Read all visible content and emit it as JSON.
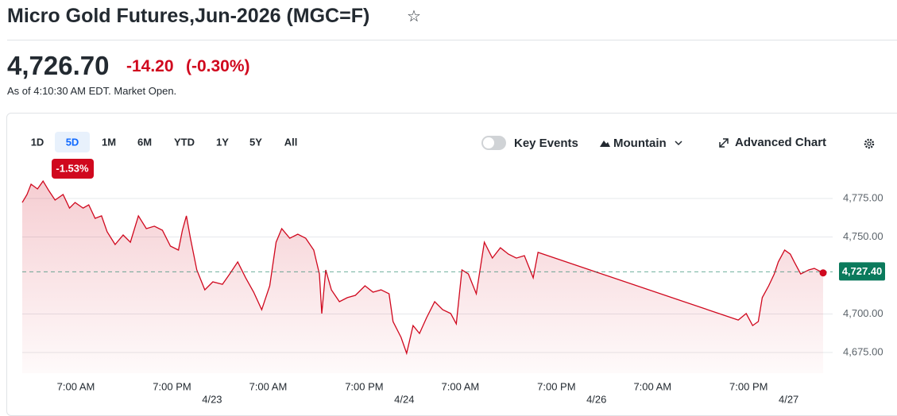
{
  "header": {
    "title": "Micro Gold Futures,Jun-2026 (MGC=F)"
  },
  "quote": {
    "price": "4,726.70",
    "change": "-14.20",
    "change_percent": "(-0.30%)",
    "as_of": "As of 4:10:30 AM EDT. Market Open."
  },
  "toolbar": {
    "ranges": [
      "1D",
      "5D",
      "1M",
      "6M",
      "YTD",
      "1Y",
      "5Y",
      "All"
    ],
    "selected_range": 1,
    "range_change": "-1.53%",
    "key_events": "Key Events",
    "chart_style": "Mountain",
    "advanced": "Advanced Chart"
  },
  "chart_data": {
    "type": "area",
    "color": "#d0081e",
    "grid": true,
    "x": [
      0.3,
      0.9,
      1.4,
      2.2,
      2.9,
      3.6,
      4.4,
      5.4,
      6.2,
      6.9,
      7.9,
      8.6,
      9.4,
      10.2,
      10.9,
      11.9,
      12.9,
      13.8,
      14.8,
      15.8,
      16.8,
      17.8,
      18.8,
      19.8,
      20.3,
      20.8,
      21.3,
      22.1,
      23.1,
      24.1,
      25.3,
      26.2,
      27.2,
      28.2,
      29.2,
      30.2,
      31.2,
      32.0,
      32.7,
      33.7,
      34.7,
      35.7,
      36.7,
      37.4,
      37.7,
      38.2,
      38.9,
      39.9,
      40.9,
      41.9,
      43.1,
      44.1,
      45.1,
      46.1,
      46.6,
      47.6,
      48.3,
      49.1,
      49.9,
      50.8,
      51.8,
      52.8,
      53.8,
      54.5,
      55.2,
      56.0,
      57.0,
      58.0,
      59.0,
      60.0,
      61.0,
      62.0,
      63.0,
      64.1,
      64.7,
      89.7,
      90.7,
      91.5,
      92.2,
      92.7,
      93.5,
      94.2,
      94.7,
      95.5,
      96.2,
      96.7,
      97.5,
      98.5,
      99.2,
      100.3
    ],
    "values": [
      4772.4,
      4777.6,
      4784.3,
      4781.2,
      4786.3,
      4780.2,
      4774.0,
      4777.6,
      4768.8,
      4772.4,
      4768.8,
      4770.9,
      4762.1,
      4763.7,
      4753.4,
      4745.1,
      4751.3,
      4746.6,
      4763.7,
      4755.4,
      4757.0,
      4754.4,
      4744.1,
      4741.5,
      4754.4,
      4763.7,
      4749.2,
      4728.6,
      4715.7,
      4720.9,
      4719.3,
      4726.0,
      4733.8,
      4723.5,
      4714.2,
      4702.8,
      4718.3,
      4746.6,
      4755.4,
      4749.2,
      4751.8,
      4749.2,
      4741.5,
      4726.0,
      4700.3,
      4728.6,
      4715.7,
      4708.0,
      4710.6,
      4712.1,
      4718.3,
      4714.2,
      4715.7,
      4713.1,
      4695.1,
      4684.8,
      4674.5,
      4692.5,
      4687.4,
      4697.7,
      4708.0,
      4702.8,
      4700.3,
      4693.6,
      4728.6,
      4726.0,
      4713.1,
      4746.6,
      4736.3,
      4743.0,
      4738.9,
      4736.3,
      4737.9,
      4723.5,
      4740.0,
      4696.1,
      4700.3,
      4692.5,
      4695.1,
      4710.6,
      4718.3,
      4726.0,
      4733.8,
      4741.5,
      4738.9,
      4733.8,
      4726.0,
      4728.6,
      4729.6,
      4726.7
    ],
    "xlim": [
      0.3,
      100.3
    ],
    "xticks": [
      {
        "value": 7,
        "label": "7:00 AM"
      },
      {
        "value": 19,
        "label": "7:00 PM"
      },
      {
        "value": 24,
        "label": "4/23"
      },
      {
        "value": 31,
        "label": "7:00 AM"
      },
      {
        "value": 43,
        "label": "7:00 PM"
      },
      {
        "value": 48,
        "label": "4/24"
      },
      {
        "value": 55,
        "label": "7:00 AM"
      },
      {
        "value": 67,
        "label": "7:00 PM"
      },
      {
        "value": 72,
        "label": "4/26"
      },
      {
        "value": 79,
        "label": "7:00 AM"
      },
      {
        "value": 91,
        "label": "7:00 PM"
      },
      {
        "value": 96,
        "label": "4/27"
      }
    ],
    "ylim": [
      4661.6,
      4787.9
    ],
    "yticks": [
      {
        "value": 4675,
        "label": "4,675.00"
      },
      {
        "value": 4700,
        "label": "4,700.00"
      },
      {
        "value": 4750,
        "label": "4,750.00"
      },
      {
        "value": 4775,
        "label": "4,775.00"
      }
    ],
    "reference": {
      "value": 4727.4,
      "label": "4,727.40",
      "color": "#0b7a5c"
    }
  }
}
